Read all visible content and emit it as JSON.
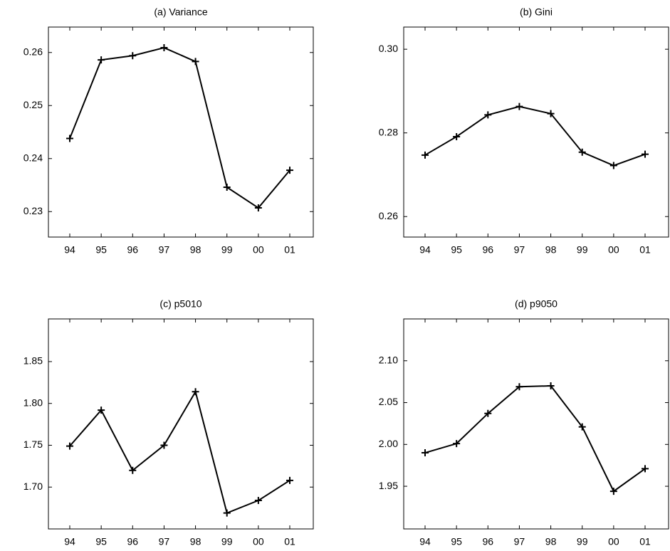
{
  "chart_data": [
    {
      "type": "line",
      "title": "(a) Variance",
      "categories": [
        "94",
        "95",
        "96",
        "97",
        "98",
        "99",
        "00",
        "01"
      ],
      "values": [
        0.2438,
        0.2586,
        0.2594,
        0.2609,
        0.2583,
        0.2346,
        0.2307,
        0.2378
      ],
      "color": "#000000",
      "ylim": [
        0.2252,
        0.2648
      ],
      "yticks": [
        0.23,
        0.24,
        0.25,
        0.26
      ]
    },
    {
      "type": "line",
      "title": "(b) Gini",
      "categories": [
        "94",
        "95",
        "96",
        "97",
        "98",
        "99",
        "00",
        "01"
      ],
      "values": [
        0.2747,
        0.2791,
        0.2843,
        0.2863,
        0.2846,
        0.2754,
        0.2722,
        0.2749
      ],
      "color": "#000000",
      "ylim": [
        0.2551,
        0.3053
      ],
      "yticks": [
        0.26,
        0.28,
        {
          "value": 0.3,
          "label": "0.30"
        }
      ]
    },
    {
      "type": "line",
      "title": "(c) p5010",
      "categories": [
        "94",
        "95",
        "96",
        "97",
        "98",
        "99",
        "00",
        "01"
      ],
      "values": [
        1.749,
        1.792,
        1.72,
        1.75,
        1.814,
        1.669,
        1.684,
        1.708
      ],
      "color": "#000000",
      "ylim": [
        1.65,
        1.901
      ],
      "yticks": [
        {
          "value": 1.7,
          "label": "1.70"
        },
        1.75,
        {
          "value": 1.8,
          "label": "1.80"
        },
        1.85
      ]
    },
    {
      "type": "line",
      "title": "(d) p9050",
      "categories": [
        "94",
        "95",
        "96",
        "97",
        "98",
        "99",
        "00",
        "01"
      ],
      "values": [
        1.99,
        2.001,
        2.037,
        2.069,
        2.07,
        2.021,
        1.944,
        1.971
      ],
      "color": "#000000",
      "ylim": [
        1.899,
        2.15
      ],
      "yticks": [
        1.95,
        {
          "value": 2,
          "label": "2.00"
        },
        2.05,
        {
          "value": 2.1,
          "label": "2.10"
        }
      ]
    }
  ]
}
